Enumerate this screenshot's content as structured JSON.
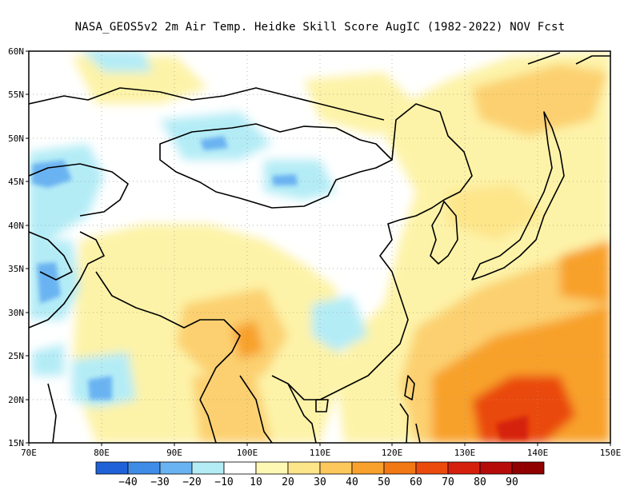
{
  "title": "NASA_GEOS5v2  2m Air Temp. Heidke Skill Score AugIC (1982-2022) NOV Fcst",
  "map": {
    "lon_labels": [
      "70E",
      "80E",
      "90E",
      "100E",
      "110E",
      "120E",
      "130E",
      "140E",
      "150E"
    ],
    "lat_labels": [
      "60N",
      "55N",
      "50N",
      "45N",
      "40N",
      "35N",
      "30N",
      "25N",
      "20N",
      "15N"
    ],
    "lon_range": [
      70,
      150
    ],
    "lat_range": [
      15,
      60
    ],
    "gridlines": "dotted"
  },
  "colorbar": {
    "colors": [
      "#1f62d8",
      "#3f8ce6",
      "#6ab3f2",
      "#b4ecf6",
      "#ffffff",
      "#fdf8b4",
      "#fde58a",
      "#fcc85c",
      "#f8a12c",
      "#f27813",
      "#ea4a0c",
      "#d5200c",
      "#b50c0a",
      "#900000"
    ],
    "labels": [
      "-40",
      "-30",
      "-20",
      "-10",
      "10",
      "20",
      "30",
      "40",
      "50",
      "60",
      "70",
      "80",
      "90"
    ]
  }
}
